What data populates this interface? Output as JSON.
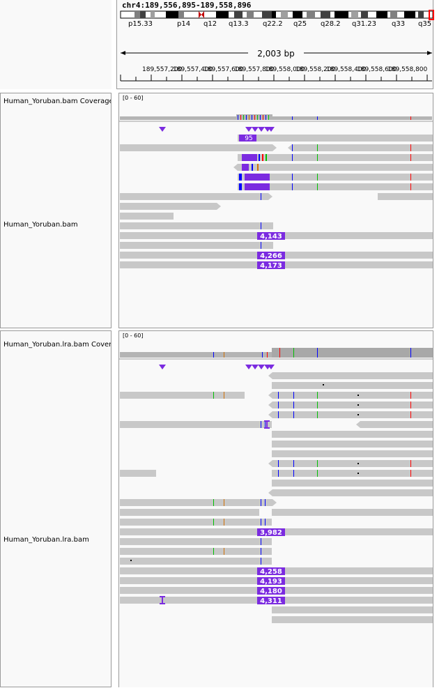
{
  "locus": "chr4:189,556,895-189,558,896",
  "span": "2,003 bp",
  "ideogram_bands": [
    "p15.33",
    "p14",
    "q12",
    "q13.3",
    "q22.2",
    "q25",
    "q28.2",
    "q31.23",
    "q33",
    "q35"
  ],
  "ruler_ticks": [
    "189,557,200",
    "189,557,400",
    "189,557,600",
    "189,557,800",
    "189,558,000",
    "189,558,200",
    "189,558,400",
    "189,558,600",
    "189,558,800"
  ],
  "colors": {
    "read": "#c8c8c8",
    "coverage": "#b4b4b4",
    "insertion": "#7b2be0",
    "mismatch_a": "#00c000",
    "mismatch_c": "#0000ff",
    "mismatch_g": "#d17105",
    "mismatch_t": "#ff0000",
    "chrom_marker": "#ff0000"
  },
  "tracks": [
    {
      "coverage_name": "Human_Yoruban.bam Coverage",
      "alignment_name": "Human_Yoruban.bam",
      "range": "[0 - 60]",
      "insertion_labels": [
        "95",
        "4,143",
        "4,266",
        "4,173"
      ]
    },
    {
      "coverage_name": "Human_Yoruban.lra.bam Coverage",
      "alignment_name": "Human_Yoruban.lra.bam",
      "range": "[0 - 60]",
      "insertion_labels": [
        "3,982",
        "4,258",
        "4,193",
        "4,180",
        "4,311"
      ]
    }
  ]
}
